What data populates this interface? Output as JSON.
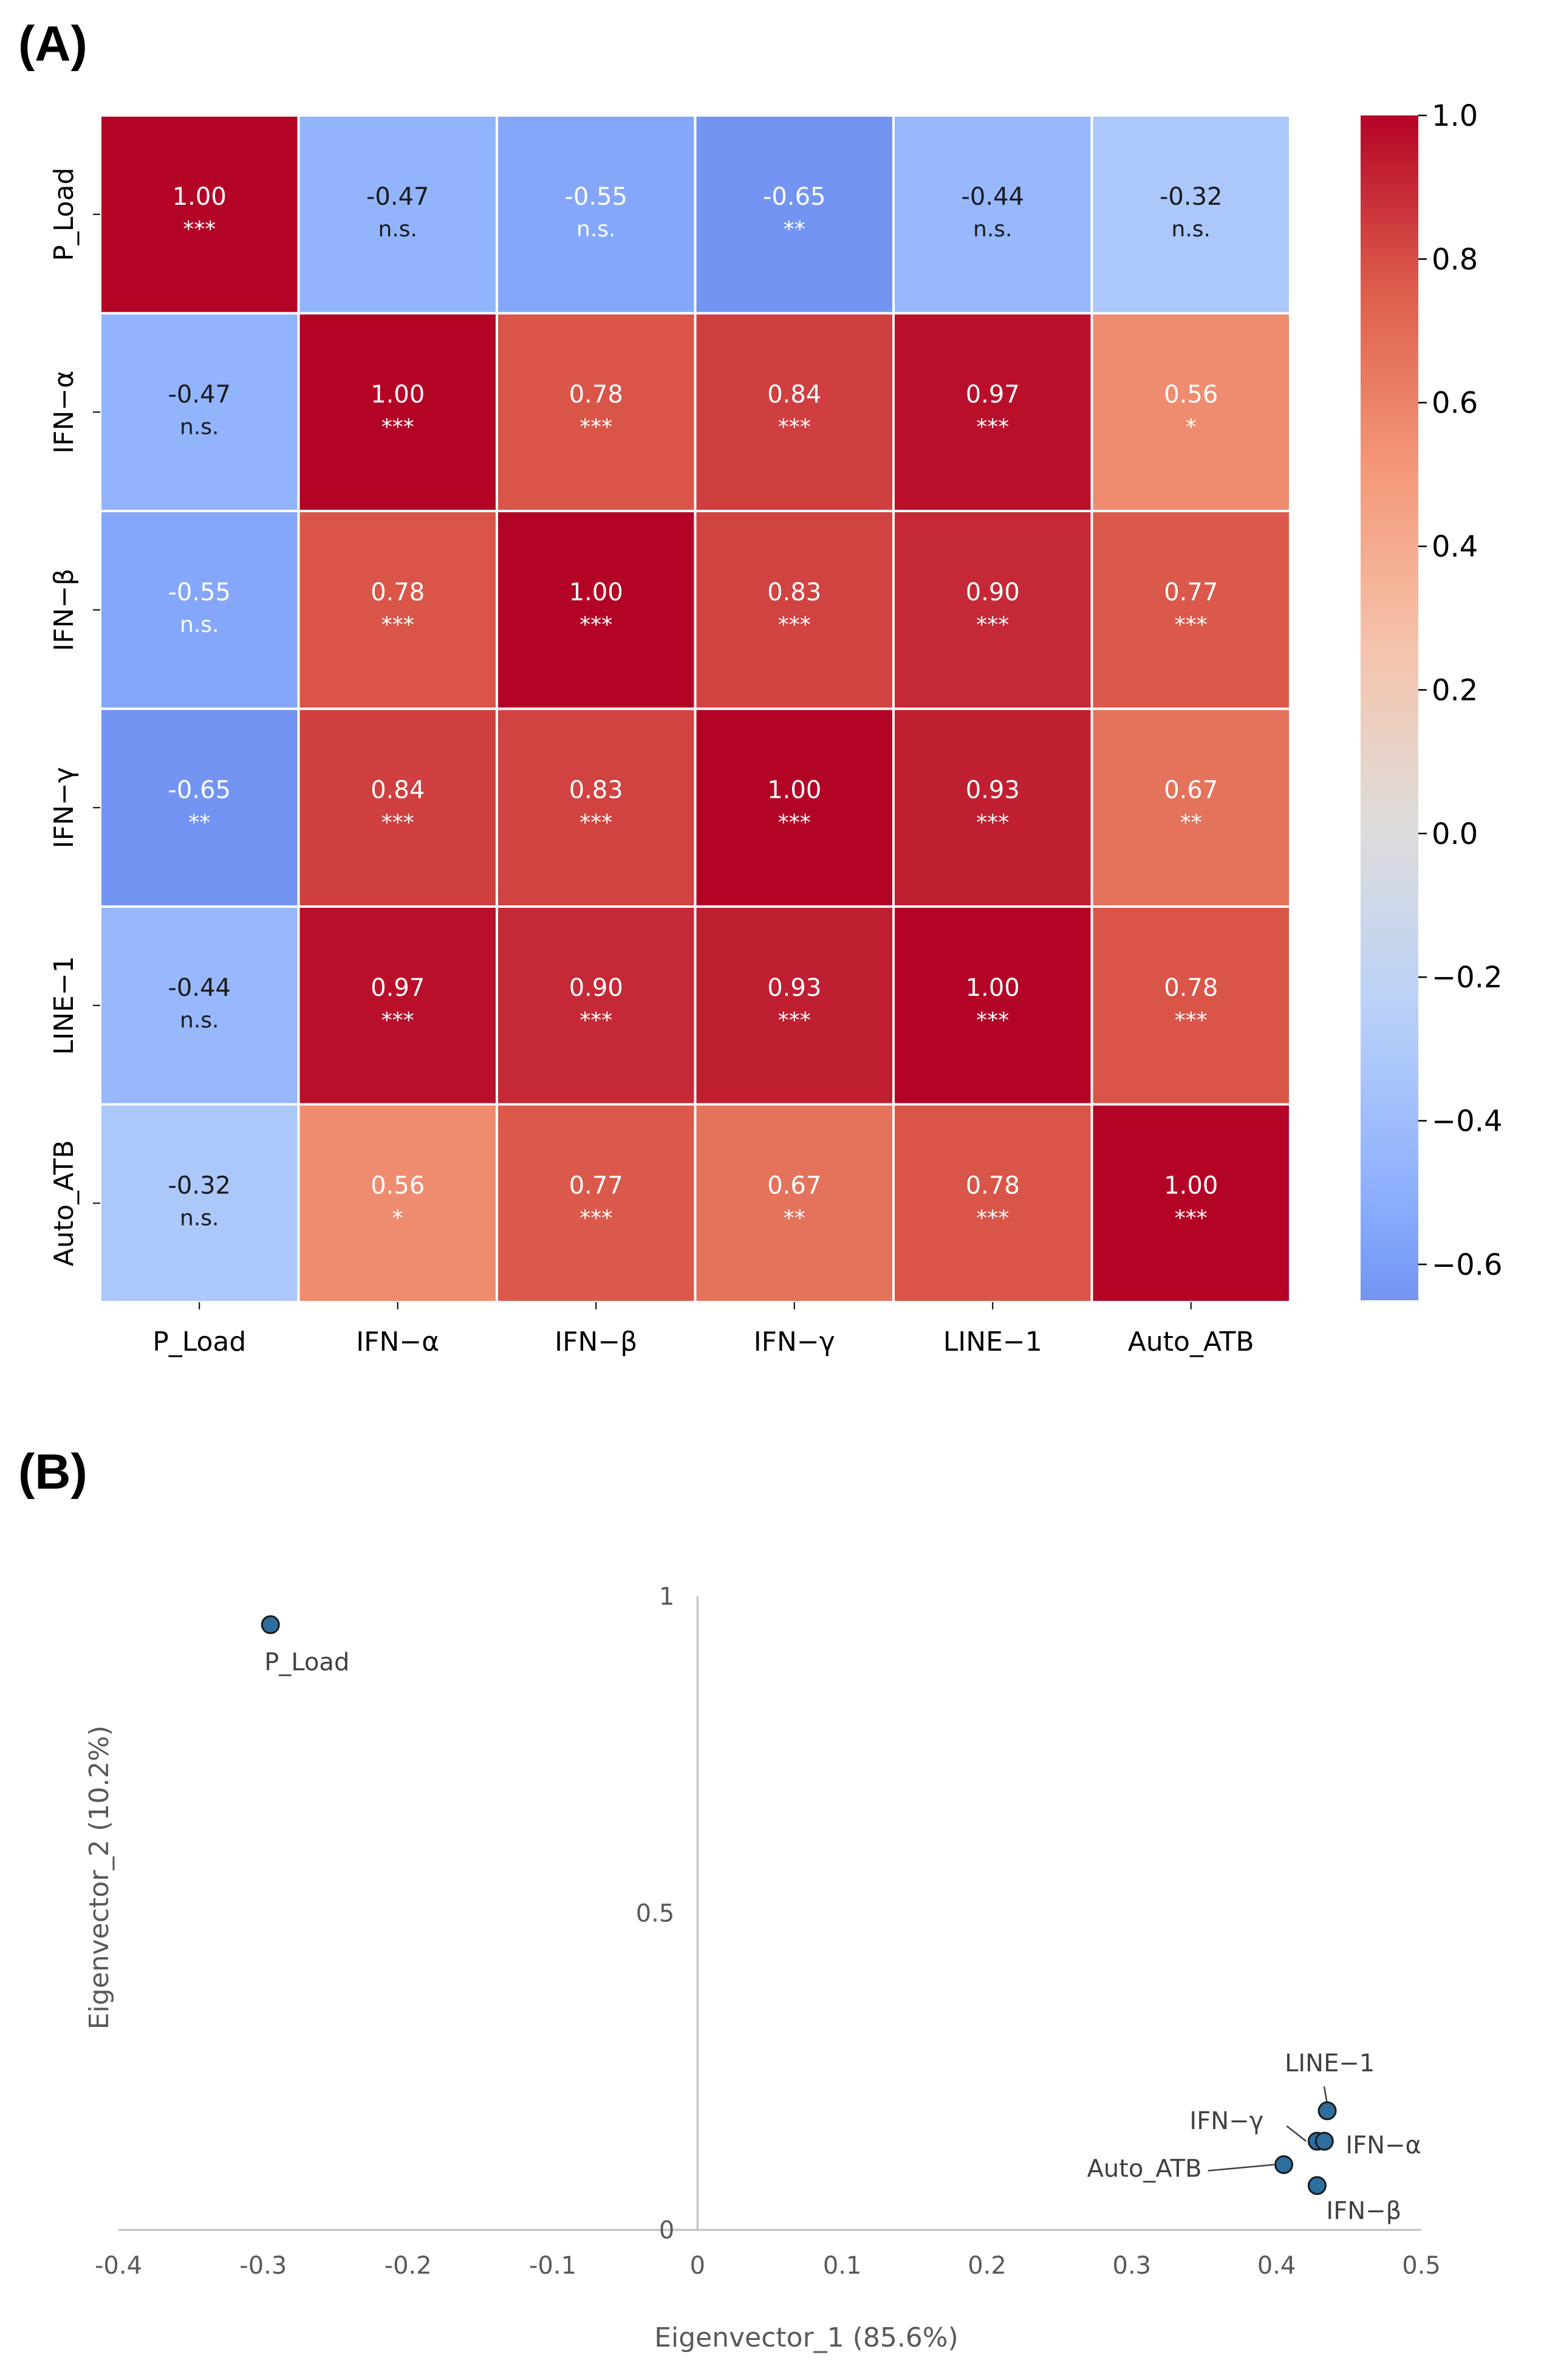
{
  "panels": {
    "a_label": "(A)",
    "b_label": "(B)"
  },
  "chart_data": [
    {
      "type": "heatmap",
      "title": "",
      "variables": [
        "P_Load",
        "IFN−α",
        "IFN−β",
        "IFN−γ",
        "LINE−1",
        "Auto_ATB"
      ],
      "values": [
        [
          1.0,
          -0.47,
          -0.55,
          -0.65,
          -0.44,
          -0.32
        ],
        [
          -0.47,
          1.0,
          0.78,
          0.84,
          0.97,
          0.56
        ],
        [
          -0.55,
          0.78,
          1.0,
          0.83,
          0.9,
          0.77
        ],
        [
          -0.65,
          0.84,
          0.83,
          1.0,
          0.93,
          0.67
        ],
        [
          -0.44,
          0.97,
          0.9,
          0.93,
          1.0,
          0.78
        ],
        [
          -0.32,
          0.56,
          0.77,
          0.67,
          0.78,
          1.0
        ]
      ],
      "value_labels": [
        [
          "1.00",
          "-0.47",
          "-0.55",
          "-0.65",
          "-0.44",
          "-0.32"
        ],
        [
          "-0.47",
          "1.00",
          "0.78",
          "0.84",
          "0.97",
          "0.56"
        ],
        [
          "-0.55",
          "0.78",
          "1.00",
          "0.83",
          "0.90",
          "0.77"
        ],
        [
          "-0.65",
          "0.84",
          "0.83",
          "1.00",
          "0.93",
          "0.67"
        ],
        [
          "-0.44",
          "0.97",
          "0.90",
          "0.93",
          "1.00",
          "0.78"
        ],
        [
          "-0.32",
          "0.56",
          "0.77",
          "0.67",
          "0.78",
          "1.00"
        ]
      ],
      "significance": [
        [
          "***",
          "n.s.",
          "n.s.",
          "**",
          "n.s.",
          "n.s."
        ],
        [
          "n.s.",
          "***",
          "***",
          "***",
          "***",
          "*"
        ],
        [
          "n.s.",
          "***",
          "***",
          "***",
          "***",
          "***"
        ],
        [
          "**",
          "***",
          "***",
          "***",
          "***",
          "**"
        ],
        [
          "n.s.",
          "***",
          "***",
          "***",
          "***",
          "***"
        ],
        [
          "n.s.",
          "*",
          "***",
          "**",
          "***",
          "***"
        ]
      ],
      "colormap": "coolwarm",
      "colorbar": {
        "range": [
          -0.65,
          1.0
        ],
        "ticks": [
          1.0,
          0.8,
          0.6,
          0.4,
          0.2,
          0.0,
          -0.2,
          -0.4,
          -0.6
        ],
        "tick_labels": [
          "1.0",
          "0.8",
          "0.6",
          "0.4",
          "0.2",
          "0.0",
          "−0.2",
          "−0.4",
          "−0.6"
        ]
      }
    },
    {
      "type": "scatter",
      "title": "",
      "xlabel": "Eigenvector_1 (85.6%)",
      "ylabel": "Eigenvector_2 (10.2%)",
      "xlim": [
        -0.4,
        0.5
      ],
      "ylim": [
        0,
        1
      ],
      "x_ticks": [
        -0.4,
        -0.3,
        -0.2,
        -0.1,
        0,
        0.1,
        0.2,
        0.3,
        0.4,
        0.5
      ],
      "x_tick_labels": [
        "-0.4",
        "-0.3",
        "-0.2",
        "-0.1",
        "0",
        "0.1",
        "0.2",
        "0.3",
        "0.4",
        "0.5"
      ],
      "y_ticks": [
        0,
        0.5,
        1
      ],
      "y_tick_labels": [
        "0",
        "0.5",
        "1"
      ],
      "points": [
        {
          "label": "P_Load",
          "x": -0.295,
          "y": 0.955
        },
        {
          "label": "LINE−1",
          "x": 0.435,
          "y": 0.188
        },
        {
          "label": "IFN−γ",
          "x": 0.428,
          "y": 0.14
        },
        {
          "label": "IFN−α",
          "x": 0.433,
          "y": 0.14
        },
        {
          "label": "Auto_ATB",
          "x": 0.405,
          "y": 0.103
        },
        {
          "label": "IFN−β",
          "x": 0.428,
          "y": 0.07
        }
      ],
      "marker_color": "#2e6e9e"
    }
  ]
}
